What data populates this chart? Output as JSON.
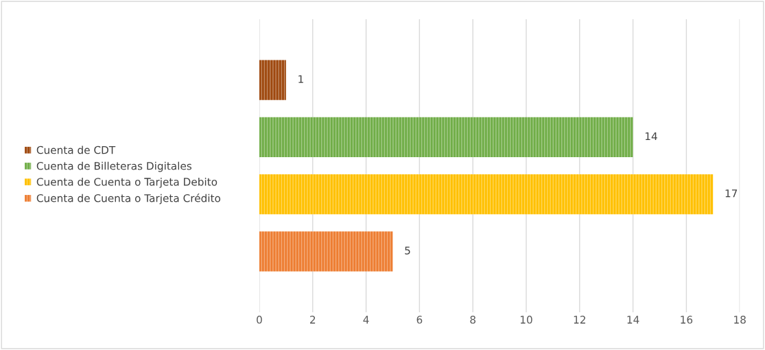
{
  "chart_data": {
    "type": "bar",
    "orientation": "horizontal",
    "categories": [
      null
    ],
    "series": [
      {
        "name": "Cuenta de CDT",
        "color": "#9e480e",
        "values": [
          1
        ]
      },
      {
        "name": "Cuenta de Billeteras Digitales",
        "color": "#70ad47",
        "values": [
          14
        ]
      },
      {
        "name": "Cuenta de Cuenta o Tarjeta Debito",
        "color": "#ffc000",
        "values": [
          17
        ]
      },
      {
        "name": "Cuenta de Cuenta o Tarjeta Crédito",
        "color": "#ed7d31",
        "values": [
          5
        ]
      }
    ],
    "xlim": [
      0,
      18
    ],
    "xticks": [
      0,
      2,
      4,
      6,
      8,
      10,
      12,
      14,
      16,
      18
    ],
    "grid": "x",
    "legend": "left",
    "data_labels": true,
    "tick_labels": "x"
  }
}
